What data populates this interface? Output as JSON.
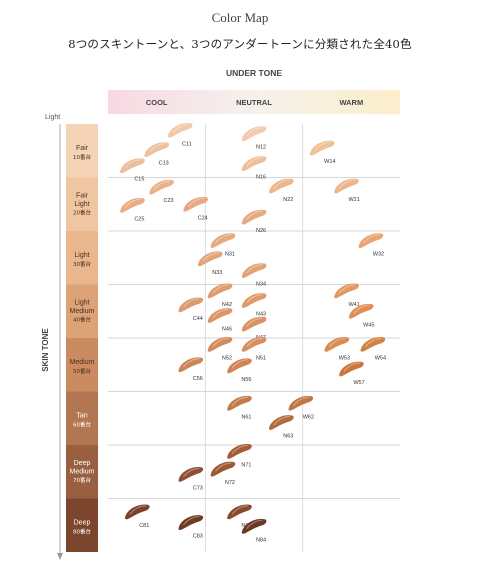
{
  "title": "Color Map",
  "subtitle": "8つのスキントーンと、3つのアンダートーンに分類された全40色",
  "chart_data": {
    "type": "scatter",
    "undertone_axis_label": "UNDER TONE",
    "undertones": [
      "COOL",
      "NEUTRAL",
      "WARM"
    ],
    "skintone_axis_label": "SKIN TONE",
    "light_label": "Light",
    "skin_tones": [
      {
        "name1": "Fair",
        "name2": "",
        "sub": "10番台",
        "color": "#f5d3b6"
      },
      {
        "name1": "Fair",
        "name2": "Light",
        "sub": "20番台",
        "color": "#efc5a2"
      },
      {
        "name1": "Light",
        "name2": "",
        "sub": "30番台",
        "color": "#e9b68d"
      },
      {
        "name1": "Light",
        "name2": "Medium",
        "sub": "40番台",
        "color": "#dca377"
      },
      {
        "name1": "Medium",
        "name2": "",
        "sub": "50番台",
        "color": "#c98b5f"
      },
      {
        "name1": "Tan",
        "name2": "",
        "sub": "60番台",
        "color": "#b27651"
      },
      {
        "name1": "Deep",
        "name2": "Medium",
        "sub": "70番台",
        "color": "#9a5f41"
      },
      {
        "name1": "Deep",
        "name2": "",
        "sub": "80番台",
        "color": "#7c452d"
      }
    ],
    "shades": [
      {
        "code": "C11",
        "undertone": 0.74,
        "skintone": 0.12,
        "color": "#f1c9a9"
      },
      {
        "code": "C13",
        "undertone": 0.5,
        "skintone": 0.48,
        "color": "#edc09f"
      },
      {
        "code": "C15",
        "undertone": 0.25,
        "skintone": 0.78,
        "color": "#ecbd9c"
      },
      {
        "code": "N12",
        "undertone": 1.5,
        "skintone": 0.18,
        "color": "#f3caab"
      },
      {
        "code": "N16",
        "undertone": 1.5,
        "skintone": 0.74,
        "color": "#eebe99"
      },
      {
        "code": "W14",
        "undertone": 2.2,
        "skintone": 0.45,
        "color": "#f0c097"
      },
      {
        "code": "C23",
        "undertone": 0.55,
        "skintone": 1.18,
        "color": "#eab18b"
      },
      {
        "code": "C25",
        "undertone": 0.25,
        "skintone": 1.52,
        "color": "#e8ad85"
      },
      {
        "code": "C24",
        "undertone": 0.9,
        "skintone": 1.5,
        "color": "#e7a882"
      },
      {
        "code": "N22",
        "undertone": 1.78,
        "skintone": 1.16,
        "color": "#ecb68c"
      },
      {
        "code": "N26",
        "undertone": 1.5,
        "skintone": 1.74,
        "color": "#e7aa80"
      },
      {
        "code": "W21",
        "undertone": 2.45,
        "skintone": 1.16,
        "color": "#eeb58a"
      },
      {
        "code": "N31",
        "undertone": 1.18,
        "skintone": 2.18,
        "color": "#e6a87e"
      },
      {
        "code": "N33",
        "undertone": 1.05,
        "skintone": 2.52,
        "color": "#e4a47b"
      },
      {
        "code": "N34",
        "undertone": 1.5,
        "skintone": 2.74,
        "color": "#e4a276"
      },
      {
        "code": "W32",
        "undertone": 2.7,
        "skintone": 2.18,
        "color": "#e9a473"
      },
      {
        "code": "C44",
        "undertone": 0.85,
        "skintone": 3.38,
        "color": "#dc9a70"
      },
      {
        "code": "N42",
        "undertone": 1.15,
        "skintone": 3.12,
        "color": "#e19c6d"
      },
      {
        "code": "N43",
        "undertone": 1.5,
        "skintone": 3.3,
        "color": "#e09a6a"
      },
      {
        "code": "N46",
        "undertone": 1.15,
        "skintone": 3.58,
        "color": "#dd9565"
      },
      {
        "code": "N47",
        "undertone": 1.5,
        "skintone": 3.74,
        "color": "#db9262"
      },
      {
        "code": "W41",
        "undertone": 2.45,
        "skintone": 3.12,
        "color": "#e39862"
      },
      {
        "code": "W45",
        "undertone": 2.6,
        "skintone": 3.5,
        "color": "#df8e55"
      },
      {
        "code": "N52",
        "undertone": 1.15,
        "skintone": 4.12,
        "color": "#d68b5b"
      },
      {
        "code": "N51",
        "undertone": 1.5,
        "skintone": 4.12,
        "color": "#d98e5d"
      },
      {
        "code": "C56",
        "undertone": 0.85,
        "skintone": 4.5,
        "color": "#cd8656"
      },
      {
        "code": "N55",
        "undertone": 1.35,
        "skintone": 4.52,
        "color": "#d08354"
      },
      {
        "code": "W53",
        "undertone": 2.35,
        "skintone": 4.12,
        "color": "#d98b52"
      },
      {
        "code": "W54",
        "undertone": 2.72,
        "skintone": 4.12,
        "color": "#d4823f"
      },
      {
        "code": "W57",
        "undertone": 2.5,
        "skintone": 4.58,
        "color": "#c9773a"
      },
      {
        "code": "N61",
        "undertone": 1.35,
        "skintone": 5.22,
        "color": "#c47b4c"
      },
      {
        "code": "W62",
        "undertone": 1.98,
        "skintone": 5.22,
        "color": "#c27645"
      },
      {
        "code": "N63",
        "undertone": 1.78,
        "skintone": 5.58,
        "color": "#b46a3f"
      },
      {
        "code": "N71",
        "undertone": 1.35,
        "skintone": 6.12,
        "color": "#a45c38"
      },
      {
        "code": "N72",
        "undertone": 1.18,
        "skintone": 6.45,
        "color": "#9c5733"
      },
      {
        "code": "C73",
        "undertone": 0.85,
        "skintone": 6.55,
        "color": "#8e4f32"
      },
      {
        "code": "C81",
        "undertone": 0.3,
        "skintone": 7.25,
        "color": "#7a4128"
      },
      {
        "code": "C83",
        "undertone": 0.85,
        "skintone": 7.45,
        "color": "#6f3a24"
      },
      {
        "code": "N82",
        "undertone": 1.35,
        "skintone": 7.25,
        "color": "#874a2e"
      },
      {
        "code": "N84",
        "undertone": 1.5,
        "skintone": 7.52,
        "color": "#6a3823"
      }
    ]
  }
}
